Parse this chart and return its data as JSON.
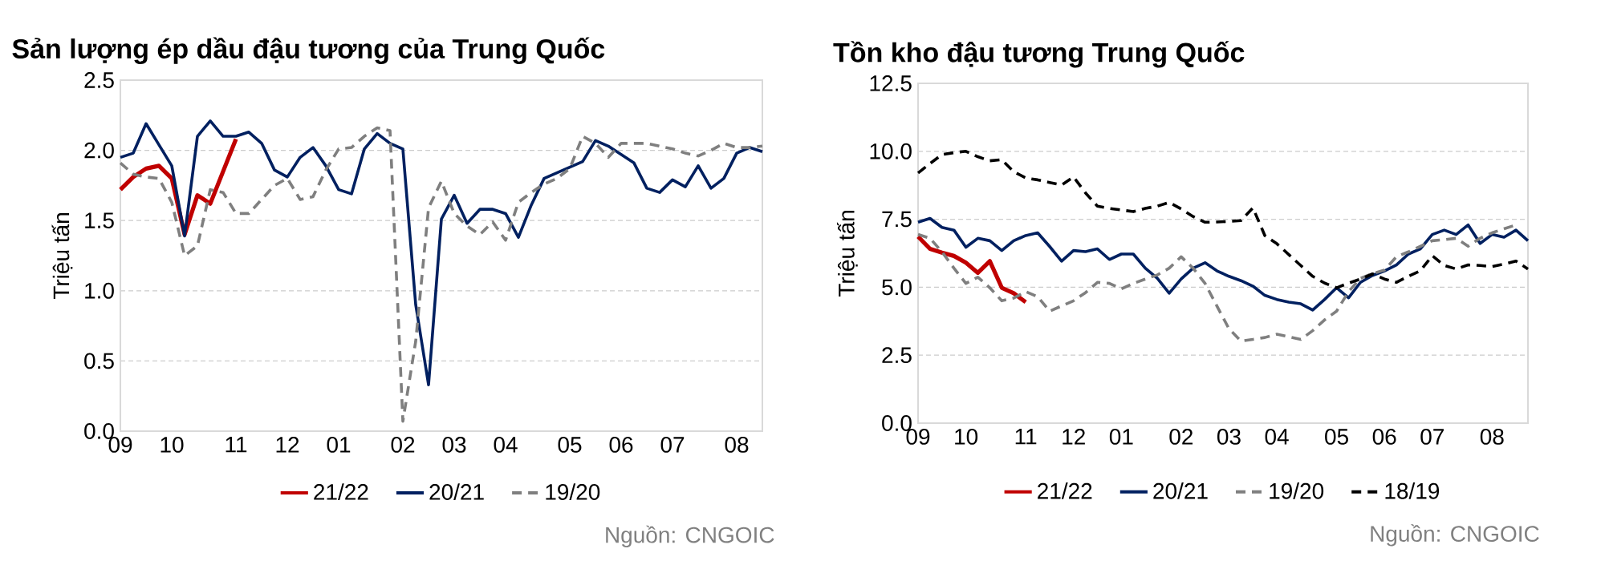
{
  "chart_data": [
    {
      "type": "line",
      "title": "Sản lượng ép dầu đậu tương của Trung Quốc",
      "ylabel": "Triệu tấn",
      "ylim": [
        0,
        2.5
      ],
      "categories": [
        "09",
        null,
        null,
        null,
        "10",
        null,
        null,
        null,
        null,
        "11",
        null,
        null,
        null,
        "12",
        null,
        null,
        null,
        "01",
        null,
        null,
        null,
        null,
        "02",
        null,
        null,
        null,
        "03",
        null,
        null,
        null,
        "04",
        null,
        null,
        null,
        null,
        "05",
        null,
        null,
        null,
        "06",
        null,
        null,
        null,
        "07",
        null,
        null,
        null,
        null,
        "08",
        null,
        null
      ],
      "yticks": [
        {
          "value": 0,
          "label": "0.0"
        },
        {
          "value": 0.5,
          "label": "0.5"
        },
        {
          "value": 1,
          "label": "1.0"
        },
        {
          "value": 1.5,
          "label": "1.5"
        },
        {
          "value": 2,
          "label": "2.0"
        },
        {
          "value": 2.5,
          "label": "2.5"
        }
      ],
      "grid": "y",
      "legend": "bottom",
      "annotations": [
        "Nguồn: CNGOIC"
      ],
      "series": [
        {
          "name": "21/22",
          "color": "#c00000",
          "line_style": "solid",
          "values": [
            1.72,
            1.81,
            1.87,
            1.89,
            1.8,
            1.4,
            1.68,
            1.62,
            1.85,
            2.08,
            null,
            null,
            null,
            null,
            null,
            null,
            null,
            null,
            null,
            null,
            null,
            null,
            null,
            null,
            null,
            null,
            null,
            null,
            null,
            null,
            null,
            null,
            null,
            null,
            null,
            null,
            null,
            null,
            null,
            null,
            null,
            null,
            null,
            null,
            null,
            null,
            null,
            null,
            null,
            null,
            null
          ]
        },
        {
          "name": "20/21",
          "color": "#002060",
          "line_style": "solid",
          "values": [
            1.95,
            1.98,
            2.19,
            2.04,
            1.89,
            1.39,
            2.1,
            2.21,
            2.1,
            2.1,
            2.13,
            2.05,
            1.86,
            1.81,
            1.95,
            2.02,
            1.89,
            1.72,
            1.69,
            2.01,
            2.12,
            2.05,
            2.01,
            0.9,
            0.33,
            1.51,
            1.68,
            1.48,
            1.58,
            1.58,
            1.55,
            1.38,
            1.61,
            1.8,
            1.84,
            1.88,
            1.92,
            2.07,
            2.03,
            1.97,
            1.91,
            1.73,
            1.7,
            1.79,
            1.74,
            1.89,
            1.73,
            1.8,
            1.98,
            2.02,
            1.99
          ]
        },
        {
          "name": "19/20",
          "color": "#7f7f7f",
          "line_style": "dashed",
          "values": [
            1.91,
            1.83,
            1.81,
            1.8,
            1.63,
            1.25,
            1.32,
            1.72,
            1.7,
            1.55,
            1.55,
            1.65,
            1.75,
            1.8,
            1.65,
            1.67,
            1.86,
            2.01,
            2.02,
            2.1,
            2.16,
            2.14,
            0.07,
            0.64,
            1.59,
            1.78,
            1.55,
            1.46,
            1.4,
            1.49,
            1.36,
            1.63,
            1.7,
            1.76,
            1.8,
            1.87,
            2.1,
            2.05,
            1.95,
            2.05,
            2.05,
            2.05,
            2.03,
            2.01,
            1.98,
            1.96,
            2,
            2.05,
            2.02,
            2.02,
            2.03
          ]
        }
      ]
    },
    {
      "type": "line",
      "title": "Tồn kho đậu tương Trung Quốc",
      "ylabel": "Triệu tấn",
      "ylim": [
        0,
        12.5
      ],
      "categories": [
        "09",
        null,
        null,
        null,
        "10",
        null,
        null,
        null,
        null,
        "11",
        null,
        null,
        null,
        "12",
        null,
        null,
        null,
        "01",
        null,
        null,
        null,
        null,
        "02",
        null,
        null,
        null,
        "03",
        null,
        null,
        null,
        "04",
        null,
        null,
        null,
        null,
        "05",
        null,
        null,
        null,
        "06",
        null,
        null,
        null,
        "07",
        null,
        null,
        null,
        null,
        "08",
        null,
        null,
        null
      ],
      "yticks": [
        {
          "value": 0,
          "label": "0.0"
        },
        {
          "value": 2.5,
          "label": "2.5"
        },
        {
          "value": 5,
          "label": "5.0"
        },
        {
          "value": 7.5,
          "label": "7.5"
        },
        {
          "value": 10,
          "label": "10.0"
        },
        {
          "value": 12.5,
          "label": "12.5"
        }
      ],
      "grid": "y",
      "legend": "bottom",
      "annotations": [
        "Nguồn: CNGOIC"
      ],
      "series": [
        {
          "name": "21/22",
          "color": "#c00000",
          "line_style": "solid",
          "values": [
            6.86,
            6.41,
            6.27,
            6.15,
            5.9,
            5.53,
            5.96,
            4.98,
            4.78,
            4.45,
            null,
            null,
            null,
            null,
            null,
            null,
            null,
            null,
            null,
            null,
            null,
            null,
            null,
            null,
            null,
            null,
            null,
            null,
            null,
            null,
            null,
            null,
            null,
            null,
            null,
            null,
            null,
            null,
            null,
            null,
            null,
            null,
            null,
            null,
            null,
            null,
            null,
            null,
            null,
            null,
            null,
            null
          ]
        },
        {
          "name": "20/21",
          "color": "#002060",
          "line_style": "solid",
          "values": [
            7.39,
            7.53,
            7.2,
            7.1,
            6.47,
            6.8,
            6.71,
            6.35,
            6.71,
            6.9,
            7,
            6.5,
            5.96,
            6.35,
            6.31,
            6.41,
            6.02,
            6.22,
            6.22,
            5.7,
            5.33,
            4.78,
            5.3,
            5.7,
            5.9,
            5.6,
            5.4,
            5.24,
            5.04,
            4.7,
            4.55,
            4.45,
            4.39,
            4.16,
            4.55,
            4.98,
            4.61,
            5.18,
            5.43,
            5.6,
            5.82,
            6.22,
            6.41,
            6.94,
            7.1,
            6.94,
            7.29,
            6.61,
            6.94,
            6.84,
            7.1,
            6.71
          ]
        },
        {
          "name": "19/20",
          "color": "#7f7f7f",
          "line_style": "dashed",
          "values": [
            6.94,
            6.8,
            6.3,
            5.7,
            5.14,
            5.37,
            4.98,
            4.5,
            4.6,
            4.84,
            4.65,
            4.12,
            4.31,
            4.5,
            4.8,
            5.18,
            5.14,
            4.94,
            5.14,
            5.3,
            5.45,
            5.7,
            6.12,
            5.7,
            5.14,
            4.3,
            3.47,
            3.02,
            3.08,
            3.15,
            3.27,
            3.18,
            3.08,
            3.4,
            3.8,
            4.12,
            4.84,
            5.33,
            5.5,
            5.63,
            6.12,
            6.3,
            6.5,
            6.71,
            6.75,
            6.8,
            6.51,
            6.8,
            7,
            7.15,
            7.29,
            null
          ]
        },
        {
          "name": "18/19",
          "color": "#000000",
          "line_style": "dashed",
          "values": [
            9.2,
            9.55,
            9.88,
            9.95,
            10,
            9.8,
            9.65,
            9.69,
            9.25,
            9.02,
            8.95,
            8.85,
            8.76,
            9.06,
            8.47,
            7.98,
            7.9,
            7.84,
            7.78,
            7.9,
            7.98,
            8.12,
            7.88,
            7.6,
            7.39,
            7.4,
            7.42,
            7.45,
            7.92,
            6.9,
            6.6,
            6.2,
            5.8,
            5.4,
            5.15,
            4.98,
            5.15,
            5.3,
            5.49,
            5.3,
            5.18,
            5.4,
            5.6,
            6.16,
            5.8,
            5.67,
            5.82,
            5.8,
            5.76,
            5.85,
            5.96,
            5.67
          ]
        }
      ]
    }
  ]
}
